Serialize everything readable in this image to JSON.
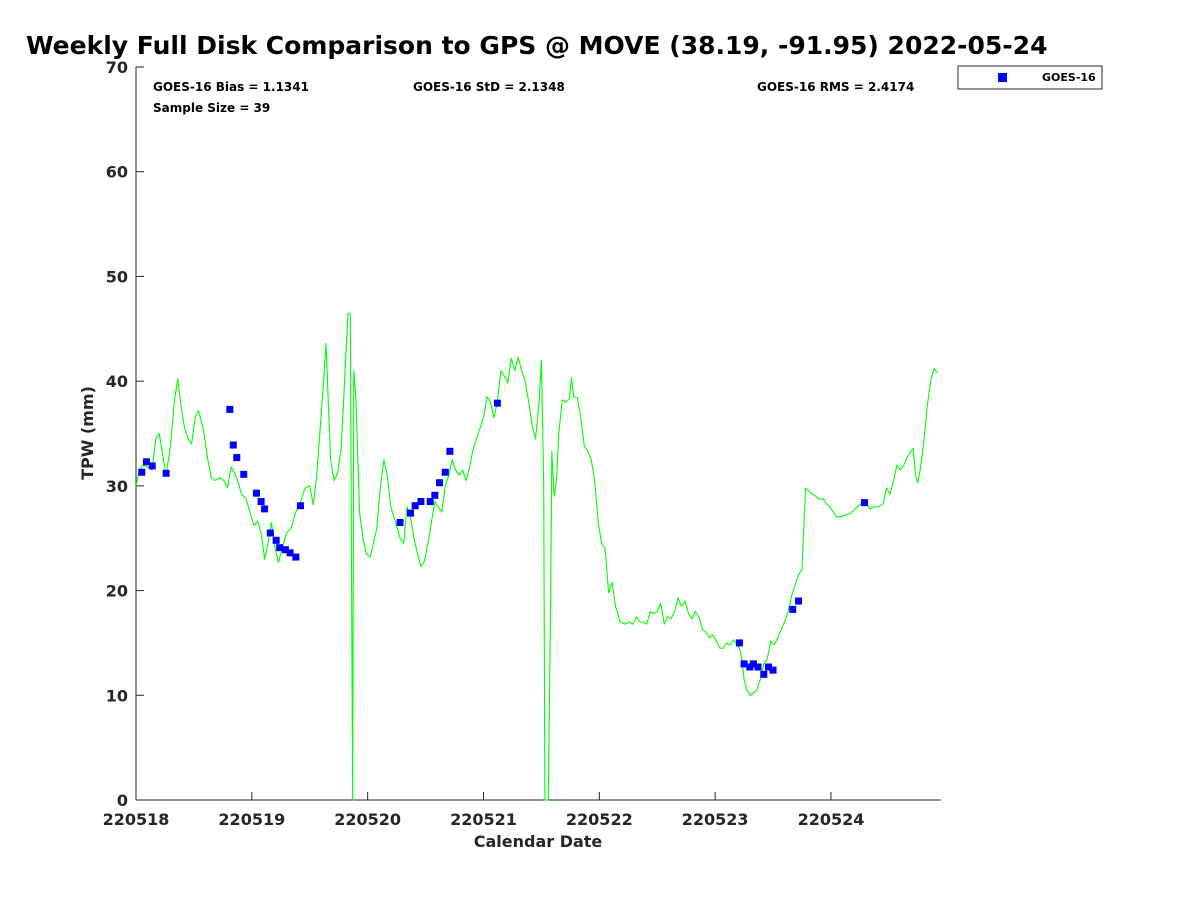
{
  "chart_data": {
    "type": "scatter",
    "title": "Weekly Full Disk Comparison to GPS @ MOVE (38.19, -91.95) 2022-05-24",
    "xlabel": "Calendar Date",
    "ylabel": "TPW (mm)",
    "xlim": [
      0,
      6.95
    ],
    "ylim": [
      0,
      70
    ],
    "x_ticks": [
      0,
      1,
      2,
      3,
      4,
      5,
      6
    ],
    "x_tick_labels": [
      "220518",
      "220519",
      "220520",
      "220521",
      "220522",
      "220523",
      "220524"
    ],
    "y_ticks": [
      0,
      10,
      20,
      30,
      40,
      50,
      60,
      70
    ],
    "y_tick_labels": [
      "0",
      "10",
      "20",
      "30",
      "40",
      "50",
      "60",
      "70"
    ],
    "grid": false,
    "legend_position": "outside top-right",
    "stats": {
      "bias": "GOES-16 Bias = 1.1341",
      "std": "GOES-16 StD = 2.1348",
      "rms": "GOES-16 RMS = 2.4174",
      "sample": "Sample Size = 39"
    },
    "series": [
      {
        "name": "GOES-16",
        "kind": "scatter",
        "marker": "square",
        "color": "#0000ff",
        "points": [
          [
            0.05,
            31.3
          ],
          [
            0.09,
            32.3
          ],
          [
            0.14,
            31.9
          ],
          [
            0.26,
            31.2
          ],
          [
            0.81,
            37.3
          ],
          [
            0.84,
            33.9
          ],
          [
            0.87,
            32.7
          ],
          [
            0.93,
            31.1
          ],
          [
            1.04,
            29.3
          ],
          [
            1.08,
            28.5
          ],
          [
            1.11,
            27.8
          ],
          [
            1.16,
            25.5
          ],
          [
            1.21,
            24.8
          ],
          [
            1.24,
            24.1
          ],
          [
            1.29,
            23.9
          ],
          [
            1.33,
            23.6
          ],
          [
            1.38,
            23.2
          ],
          [
            1.42,
            28.1
          ],
          [
            2.28,
            26.5
          ],
          [
            2.37,
            27.4
          ],
          [
            2.41,
            28.1
          ],
          [
            2.46,
            28.5
          ],
          [
            2.54,
            28.5
          ],
          [
            2.58,
            29.1
          ],
          [
            2.62,
            30.3
          ],
          [
            2.67,
            31.3
          ],
          [
            2.71,
            33.3
          ],
          [
            3.12,
            37.9
          ],
          [
            5.21,
            15.0
          ],
          [
            5.25,
            13.0
          ],
          [
            5.3,
            12.7
          ],
          [
            5.33,
            13.0
          ],
          [
            5.37,
            12.7
          ],
          [
            5.42,
            12.0
          ],
          [
            5.46,
            12.7
          ],
          [
            5.5,
            12.4
          ],
          [
            5.67,
            18.2
          ],
          [
            5.72,
            19.0
          ],
          [
            6.29,
            28.4
          ]
        ]
      },
      {
        "kind": "line",
        "color": "#00ff00",
        "points": [
          [
            0.0,
            30.0
          ],
          [
            0.03,
            31.5
          ],
          [
            0.06,
            32.0
          ],
          [
            0.1,
            31.8
          ],
          [
            0.14,
            31.5
          ],
          [
            0.17,
            34.5
          ],
          [
            0.2,
            35.0
          ],
          [
            0.23,
            33.0
          ],
          [
            0.26,
            31.0
          ],
          [
            0.3,
            34.0
          ],
          [
            0.33,
            38.0
          ],
          [
            0.36,
            40.2
          ],
          [
            0.39,
            37.5
          ],
          [
            0.42,
            35.5
          ],
          [
            0.45,
            34.5
          ],
          [
            0.48,
            34.0
          ],
          [
            0.51,
            36.5
          ],
          [
            0.54,
            37.2
          ],
          [
            0.58,
            35.5
          ],
          [
            0.62,
            32.5
          ],
          [
            0.65,
            30.8
          ],
          [
            0.68,
            30.5
          ],
          [
            0.72,
            30.8
          ],
          [
            0.76,
            30.5
          ],
          [
            0.79,
            29.8
          ],
          [
            0.82,
            31.8
          ],
          [
            0.85,
            31.2
          ],
          [
            0.88,
            30.5
          ],
          [
            0.91,
            29.2
          ],
          [
            0.95,
            28.8
          ],
          [
            0.99,
            27.2
          ],
          [
            1.02,
            26.2
          ],
          [
            1.05,
            26.6
          ],
          [
            1.08,
            25.5
          ],
          [
            1.11,
            23.0
          ],
          [
            1.14,
            24.5
          ],
          [
            1.17,
            26.5
          ],
          [
            1.2,
            24.0
          ],
          [
            1.23,
            22.7
          ],
          [
            1.26,
            24.0
          ],
          [
            1.3,
            25.5
          ],
          [
            1.34,
            26.0
          ],
          [
            1.38,
            27.5
          ],
          [
            1.42,
            28.5
          ],
          [
            1.46,
            29.8
          ],
          [
            1.5,
            30.0
          ],
          [
            1.53,
            28.2
          ],
          [
            1.56,
            31.0
          ],
          [
            1.59,
            35.5
          ],
          [
            1.62,
            40.0
          ],
          [
            1.64,
            43.6
          ],
          [
            1.66,
            38.0
          ],
          [
            1.68,
            32.5
          ],
          [
            1.71,
            30.5
          ],
          [
            1.74,
            31.2
          ],
          [
            1.77,
            33.5
          ],
          [
            1.79,
            37.5
          ],
          [
            1.81,
            42.0
          ],
          [
            1.83,
            46.5
          ],
          [
            1.85,
            46.4
          ],
          [
            1.86,
            25.0
          ],
          [
            1.87,
            0.0
          ],
          [
            1.875,
            20.0
          ],
          [
            1.88,
            41.0
          ],
          [
            1.9,
            38.0
          ],
          [
            1.93,
            27.5
          ],
          [
            1.96,
            25.0
          ],
          [
            1.99,
            23.5
          ],
          [
            2.02,
            23.2
          ],
          [
            2.05,
            24.5
          ],
          [
            2.08,
            26.0
          ],
          [
            2.11,
            30.0
          ],
          [
            2.14,
            32.5
          ],
          [
            2.17,
            31.0
          ],
          [
            2.2,
            28.0
          ],
          [
            2.24,
            26.5
          ],
          [
            2.28,
            25.0
          ],
          [
            2.31,
            24.5
          ],
          [
            2.34,
            28.0
          ],
          [
            2.37,
            27.0
          ],
          [
            2.4,
            25.0
          ],
          [
            2.43,
            23.5
          ],
          [
            2.46,
            22.3
          ],
          [
            2.49,
            22.8
          ],
          [
            2.52,
            24.5
          ],
          [
            2.55,
            26.5
          ],
          [
            2.58,
            28.5
          ],
          [
            2.61,
            28.0
          ],
          [
            2.64,
            27.5
          ],
          [
            2.67,
            30.0
          ],
          [
            2.7,
            31.0
          ],
          [
            2.73,
            32.5
          ],
          [
            2.76,
            31.5
          ],
          [
            2.79,
            31.0
          ],
          [
            2.82,
            31.5
          ],
          [
            2.85,
            30.5
          ],
          [
            2.88,
            31.8
          ],
          [
            2.91,
            33.5
          ],
          [
            2.94,
            34.5
          ],
          [
            2.97,
            35.5
          ],
          [
            3.0,
            36.5
          ],
          [
            3.03,
            38.5
          ],
          [
            3.06,
            38.0
          ],
          [
            3.09,
            36.5
          ],
          [
            3.12,
            38.0
          ],
          [
            3.15,
            41.0
          ],
          [
            3.18,
            40.5
          ],
          [
            3.21,
            39.8
          ],
          [
            3.24,
            42.2
          ],
          [
            3.27,
            41.0
          ],
          [
            3.3,
            42.3
          ],
          [
            3.33,
            41.0
          ],
          [
            3.36,
            40.0
          ],
          [
            3.39,
            38.0
          ],
          [
            3.42,
            35.8
          ],
          [
            3.45,
            34.5
          ],
          [
            3.48,
            38.0
          ],
          [
            3.5,
            42.0
          ],
          [
            3.52,
            30.0
          ],
          [
            3.53,
            0.0
          ],
          [
            3.56,
            0.0
          ],
          [
            3.58,
            20.0
          ],
          [
            3.59,
            33.3
          ],
          [
            3.61,
            29.0
          ],
          [
            3.63,
            30.5
          ],
          [
            3.65,
            35.0
          ],
          [
            3.68,
            38.2
          ],
          [
            3.71,
            38.0
          ],
          [
            3.74,
            38.3
          ],
          [
            3.76,
            40.3
          ],
          [
            3.78,
            38.5
          ],
          [
            3.81,
            38.4
          ],
          [
            3.84,
            36.5
          ],
          [
            3.87,
            33.8
          ],
          [
            3.9,
            33.3
          ],
          [
            3.93,
            32.5
          ],
          [
            3.96,
            30.5
          ],
          [
            3.99,
            26.5
          ],
          [
            4.02,
            24.5
          ],
          [
            4.05,
            24.0
          ],
          [
            4.08,
            19.8
          ],
          [
            4.11,
            20.8
          ],
          [
            4.14,
            18.5
          ],
          [
            4.18,
            17.0
          ],
          [
            4.22,
            16.8
          ],
          [
            4.26,
            17.0
          ],
          [
            4.29,
            16.8
          ],
          [
            4.32,
            17.5
          ],
          [
            4.35,
            17.0
          ],
          [
            4.38,
            17.0
          ],
          [
            4.41,
            16.8
          ],
          [
            4.44,
            18.0
          ],
          [
            4.47,
            17.8
          ],
          [
            4.5,
            18.0
          ],
          [
            4.53,
            18.8
          ],
          [
            4.56,
            16.8
          ],
          [
            4.59,
            17.5
          ],
          [
            4.62,
            17.3
          ],
          [
            4.65,
            18.0
          ],
          [
            4.68,
            19.3
          ],
          [
            4.71,
            18.5
          ],
          [
            4.74,
            19.0
          ],
          [
            4.77,
            17.8
          ],
          [
            4.8,
            17.3
          ],
          [
            4.83,
            18.0
          ],
          [
            4.86,
            17.5
          ],
          [
            4.89,
            16.3
          ],
          [
            4.92,
            16.0
          ],
          [
            4.95,
            15.5
          ],
          [
            4.98,
            15.8
          ],
          [
            5.01,
            15.2
          ],
          [
            5.04,
            14.5
          ],
          [
            5.07,
            14.5
          ],
          [
            5.1,
            15.0
          ],
          [
            5.13,
            14.8
          ],
          [
            5.16,
            15.3
          ],
          [
            5.19,
            14.8
          ],
          [
            5.21,
            14.5
          ],
          [
            5.23,
            13.5
          ],
          [
            5.25,
            11.5
          ],
          [
            5.27,
            10.6
          ],
          [
            5.29,
            10.2
          ],
          [
            5.31,
            10.0
          ],
          [
            5.33,
            10.2
          ],
          [
            5.36,
            10.5
          ],
          [
            5.39,
            11.5
          ],
          [
            5.42,
            13.0
          ],
          [
            5.45,
            13.5
          ],
          [
            5.48,
            15.2
          ],
          [
            5.51,
            14.8
          ],
          [
            5.54,
            15.5
          ],
          [
            5.57,
            16.3
          ],
          [
            5.6,
            17.0
          ],
          [
            5.63,
            18.0
          ],
          [
            5.66,
            19.5
          ],
          [
            5.69,
            20.5
          ],
          [
            5.72,
            21.5
          ],
          [
            5.75,
            22.0
          ],
          [
            5.78,
            29.8
          ],
          [
            5.81,
            29.5
          ],
          [
            5.84,
            29.2
          ],
          [
            5.87,
            29.0
          ],
          [
            5.9,
            28.7
          ],
          [
            5.93,
            28.8
          ],
          [
            5.96,
            28.3
          ],
          [
            5.99,
            28.0
          ],
          [
            6.02,
            27.5
          ],
          [
            6.05,
            27.0
          ],
          [
            6.09,
            27.1
          ],
          [
            6.13,
            27.2
          ],
          [
            6.17,
            27.4
          ],
          [
            6.21,
            27.8
          ],
          [
            6.25,
            28.2
          ],
          [
            6.28,
            28.5
          ],
          [
            6.31,
            28.2
          ],
          [
            6.34,
            27.8
          ],
          [
            6.37,
            28.0
          ],
          [
            6.41,
            28.0
          ],
          [
            6.45,
            28.3
          ],
          [
            6.48,
            29.8
          ],
          [
            6.51,
            29.2
          ],
          [
            6.54,
            30.5
          ],
          [
            6.57,
            32.0
          ],
          [
            6.6,
            31.5
          ],
          [
            6.63,
            32.0
          ],
          [
            6.66,
            32.8
          ],
          [
            6.69,
            33.3
          ],
          [
            6.71,
            33.6
          ],
          [
            6.73,
            31.0
          ],
          [
            6.75,
            30.3
          ],
          [
            6.77,
            31.5
          ],
          [
            6.8,
            34.0
          ],
          [
            6.83,
            37.5
          ],
          [
            6.86,
            40.0
          ],
          [
            6.89,
            41.2
          ],
          [
            6.92,
            40.8
          ]
        ]
      }
    ]
  }
}
